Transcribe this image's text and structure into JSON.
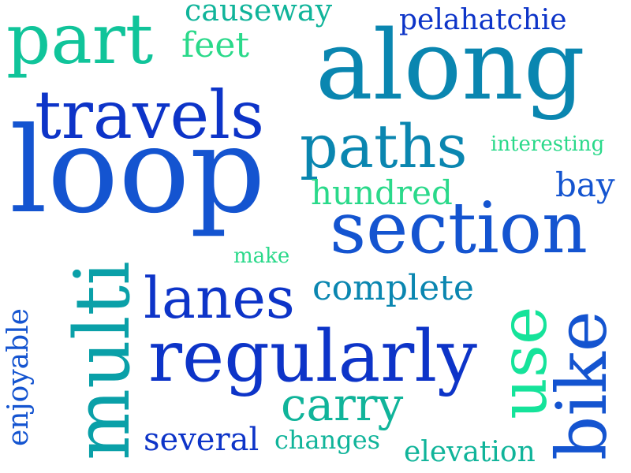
{
  "words": {
    "loop": "loop",
    "along": "along",
    "section": "section",
    "regularly": "regularly",
    "travels": "travels",
    "paths": "paths",
    "part": "part",
    "multi": "multi",
    "lanes": "lanes",
    "use": "use",
    "bike": "bike",
    "carry": "carry",
    "complete": "complete",
    "pelahatchie": "pelahatchie",
    "causeway": "causeway",
    "hundred": "hundred",
    "several": "several",
    "elevation": "elevation",
    "changes": "changes",
    "bay": "bay",
    "interesting": "interesting",
    "feet": "feet",
    "enjoyable": "enjoyable",
    "make": "make"
  },
  "colors": {
    "royal_blue": "#0d34c8",
    "blue": "#1454d0",
    "teal_blue": "#0a86b0",
    "teal": "#0aa0a8",
    "sea_green": "#10b49a",
    "mint": "#15e39a",
    "light_green": "#2ad98a"
  }
}
